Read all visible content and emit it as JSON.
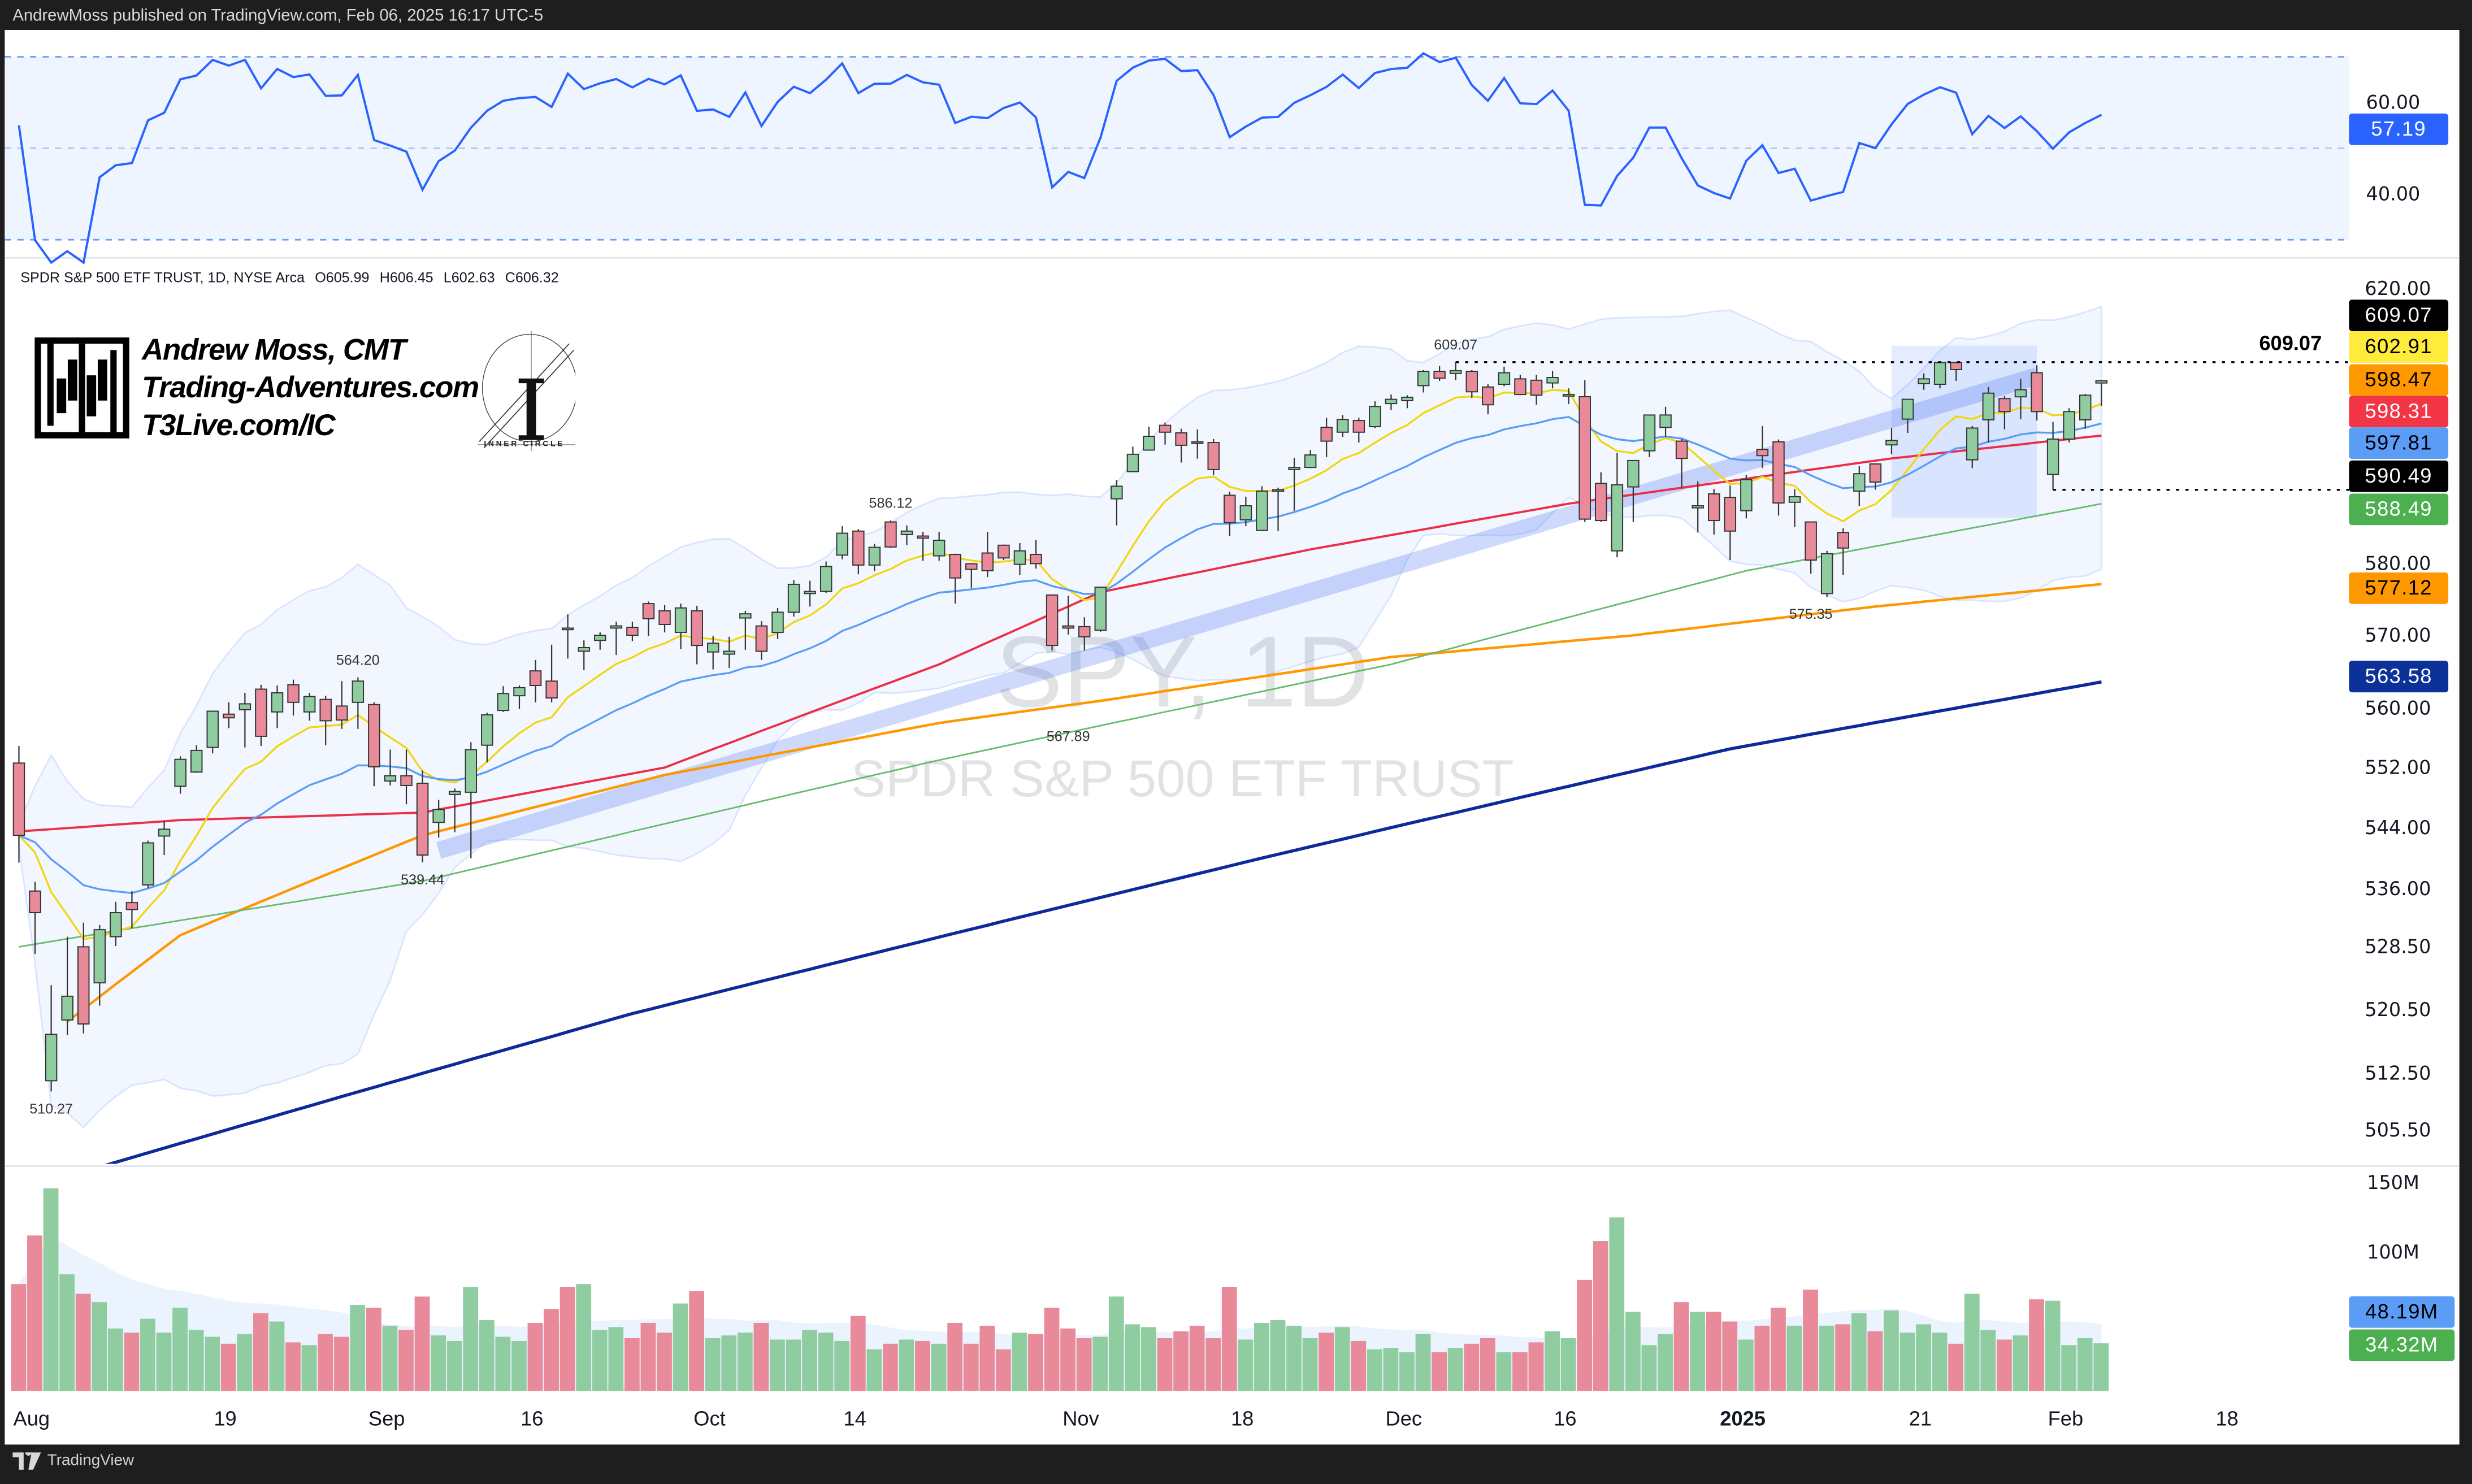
{
  "header": {
    "published": "AndrewMoss published on TradingView.com, Feb 06, 2025 16:17 UTC-5"
  },
  "legend": {
    "symbol": "SPDR S&P 500 ETF TRUST, 1D, NYSE Arca",
    "open": "O605.99",
    "high": "H606.45",
    "low": "L602.63",
    "close": "C606.32"
  },
  "watermark": {
    "ticker": "SPY, 1D",
    "name": "SPDR S&P 500 ETF TRUST"
  },
  "branding": {
    "line1": "Andrew Moss, CMT",
    "line2": "Trading-Adventures.com",
    "line3": "T3Live.com/IC",
    "inner_circle": "INNER CIRCLE"
  },
  "footer": {
    "logo_text": "TradingView"
  },
  "colors": {
    "up": "#8fcca0",
    "down": "#e88a99",
    "up_candle": "#8fcca0",
    "down_candle": "#e88a99",
    "ema8": "#f2d60f",
    "ema21": "#5b9cf6",
    "sma50": "#ec2f45",
    "ma_orange": "#ff9800",
    "ma_green": "#66bb6a",
    "ma_navy": "#0d2a9a",
    "rsi": "#2962ff"
  },
  "chart_data": {
    "type": "candlestick",
    "title": "SPY daily",
    "y_scale": "log",
    "price_ticks": [
      "620.00",
      "580.00",
      "570.00",
      "560.00",
      "552.00",
      "544.00",
      "536.00",
      "528.50",
      "520.50",
      "512.50",
      "505.50"
    ],
    "time_labels": [
      {
        "label": "Aug",
        "idx": 0
      },
      {
        "label": "19",
        "idx": 12
      },
      {
        "label": "Sep",
        "idx": 22
      },
      {
        "label": "16",
        "idx": 31
      },
      {
        "label": "Oct",
        "idx": 42
      },
      {
        "label": "14",
        "idx": 51
      },
      {
        "label": "Nov",
        "idx": 65
      },
      {
        "label": "18",
        "idx": 75
      },
      {
        "label": "Dec",
        "idx": 85
      },
      {
        "label": "16",
        "idx": 95
      },
      {
        "label": "2025",
        "idx": 106,
        "bold": true
      },
      {
        "label": "21",
        "idx": 117
      },
      {
        "label": "Feb",
        "idx": 126
      },
      {
        "label": "18",
        "idx": 136
      }
    ],
    "ohlcv_fields": [
      "open",
      "high",
      "low",
      "close",
      "volume_M"
    ],
    "ohlcv": [
      [
        552.6,
        554.9,
        539.4,
        543.0,
        77
      ],
      [
        535.7,
        536.9,
        527.6,
        532.9,
        112
      ],
      [
        511.6,
        523.6,
        510.27,
        517.4,
        146
      ],
      [
        519.2,
        529.8,
        517.3,
        522.2,
        84
      ],
      [
        528.5,
        531.6,
        517.5,
        518.7,
        70
      ],
      [
        523.9,
        531.3,
        521.0,
        530.7,
        64
      ],
      [
        529.8,
        534.3,
        528.6,
        532.9,
        45
      ],
      [
        534.2,
        535.7,
        530.9,
        533.3,
        42
      ],
      [
        536.5,
        542.3,
        536.1,
        542.0,
        52
      ],
      [
        542.9,
        544.9,
        540.4,
        543.8,
        42
      ],
      [
        549.5,
        553.5,
        548.5,
        553.1,
        60
      ],
      [
        551.4,
        555.0,
        551.3,
        554.3,
        44
      ],
      [
        554.7,
        559.6,
        553.9,
        559.6,
        39
      ],
      [
        559.2,
        560.8,
        557.3,
        558.7,
        34
      ],
      [
        559.8,
        562.1,
        554.7,
        560.6,
        41
      ],
      [
        562.6,
        563.2,
        554.9,
        556.2,
        56
      ],
      [
        559.5,
        563.1,
        557.3,
        562.1,
        50
      ],
      [
        563.2,
        563.9,
        559.0,
        560.8,
        35
      ],
      [
        559.5,
        562.1,
        558.3,
        561.6,
        33
      ],
      [
        561.2,
        561.7,
        555.0,
        558.3,
        41
      ],
      [
        560.3,
        563.7,
        557.2,
        558.4,
        39
      ],
      [
        560.8,
        564.2,
        557.2,
        563.7,
        62
      ],
      [
        560.5,
        560.8,
        549.5,
        552.1,
        60
      ],
      [
        550.2,
        554.4,
        549.6,
        550.9,
        47
      ],
      [
        550.9,
        554.4,
        547.1,
        549.6,
        44
      ],
      [
        549.9,
        551.6,
        539.44,
        540.4,
        68
      ],
      [
        544.7,
        547.7,
        542.7,
        546.4,
        40
      ],
      [
        548.4,
        549.2,
        543.4,
        548.8,
        36
      ],
      [
        548.7,
        555.4,
        539.96,
        554.4,
        75
      ],
      [
        555.0,
        559.4,
        552.7,
        559.1,
        51
      ],
      [
        559.7,
        563.0,
        559.5,
        562.0,
        39
      ],
      [
        561.7,
        563.1,
        559.9,
        562.8,
        36
      ],
      [
        565.1,
        566.6,
        560.8,
        563.1,
        49
      ],
      [
        563.7,
        568.7,
        560.8,
        561.4,
        59
      ],
      [
        571.0,
        572.9,
        566.8,
        570.98,
        75
      ],
      [
        567.8,
        569.3,
        565.2,
        568.3,
        77
      ],
      [
        569.3,
        570.4,
        568.0,
        570.0,
        44
      ],
      [
        571.0,
        571.9,
        567.3,
        571.3,
        46
      ],
      [
        571.1,
        571.9,
        569.2,
        570.0,
        38
      ],
      [
        574.4,
        574.7,
        569.9,
        572.3,
        49
      ],
      [
        573.4,
        574.2,
        570.4,
        571.5,
        42
      ],
      [
        570.4,
        574.4,
        568.1,
        573.8,
        63
      ],
      [
        573.4,
        574.1,
        566.0,
        568.6,
        72
      ],
      [
        567.7,
        569.9,
        565.3,
        568.9,
        38
      ],
      [
        567.4,
        569.8,
        565.5,
        567.8,
        40
      ],
      [
        572.4,
        573.4,
        568.0,
        572.98,
        42
      ],
      [
        571.3,
        571.96,
        566.6,
        567.8,
        49
      ],
      [
        570.4,
        573.8,
        569.5,
        573.2,
        37
      ],
      [
        573.2,
        577.7,
        572.6,
        577.1,
        37
      ],
      [
        575.8,
        577.6,
        573.99,
        576.1,
        44
      ],
      [
        576.1,
        580.3,
        575.9,
        579.6,
        42
      ],
      [
        581.2,
        585.3,
        580.6,
        584.3,
        36
      ],
      [
        584.6,
        584.9,
        578.5,
        579.8,
        54
      ],
      [
        579.8,
        582.8,
        578.95,
        582.3,
        30
      ],
      [
        585.9,
        586.12,
        582.2,
        582.35,
        34
      ],
      [
        584.1,
        585.4,
        582.6,
        584.6,
        37
      ],
      [
        583.9,
        584.5,
        580.4,
        583.6,
        36
      ],
      [
        581.1,
        584.5,
        580.4,
        583.3,
        34
      ],
      [
        581.3,
        581.4,
        574.4,
        577.99,
        49
      ],
      [
        579.98,
        580.1,
        576.6,
        579.2,
        34
      ],
      [
        581.5,
        584.5,
        578.1,
        579.0,
        47
      ],
      [
        582.6,
        582.7,
        580.5,
        580.8,
        30
      ],
      [
        579.9,
        582.9,
        578.4,
        581.8,
        42
      ],
      [
        581.3,
        583.3,
        579.3,
        580.0,
        41
      ],
      [
        575.6,
        575.6,
        567.89,
        568.6,
        60
      ],
      [
        571.3,
        575.5,
        570.1,
        571.0,
        45
      ],
      [
        571.2,
        572.5,
        567.9,
        569.8,
        38
      ],
      [
        570.7,
        576.7,
        570.5,
        576.7,
        39
      ],
      [
        589.2,
        591.9,
        585.4,
        591.0,
        68
      ],
      [
        593.1,
        596.7,
        593.0,
        595.6,
        48
      ],
      [
        596.2,
        599.6,
        596.2,
        598.2,
        46
      ],
      [
        599.8,
        600.2,
        597.0,
        598.8,
        38
      ],
      [
        598.7,
        599.3,
        594.4,
        596.9,
        43
      ],
      [
        597.4,
        599.2,
        594.96,
        597.2,
        47
      ],
      [
        597.3,
        597.8,
        592.6,
        593.4,
        38
      ],
      [
        589.7,
        590.2,
        583.9,
        585.8,
        75
      ],
      [
        586.2,
        589.5,
        585.3,
        588.2,
        37
      ],
      [
        584.7,
        591.0,
        584.6,
        590.3,
        49
      ],
      [
        590.4,
        590.8,
        584.6,
        590.5,
        51
      ],
      [
        593.4,
        595.1,
        587.5,
        593.7,
        47
      ],
      [
        593.7,
        596.2,
        593.6,
        595.5,
        38
      ],
      [
        599.5,
        600.9,
        595.2,
        597.5,
        42
      ],
      [
        598.8,
        601.3,
        598.1,
        600.65,
        46
      ],
      [
        600.5,
        600.9,
        597.3,
        598.8,
        36
      ],
      [
        599.6,
        603.3,
        599.4,
        602.55,
        30
      ],
      [
        602.97,
        604.3,
        602.0,
        603.6,
        31
      ],
      [
        603.4,
        604.2,
        602.3,
        603.9,
        28
      ],
      [
        605.6,
        607.9,
        604.6,
        607.7,
        41
      ],
      [
        607.7,
        608.5,
        606.3,
        606.7,
        28
      ],
      [
        607.4,
        609.07,
        606.4,
        607.8,
        31
      ],
      [
        607.7,
        607.9,
        603.8,
        604.7,
        34
      ],
      [
        605.4,
        605.8,
        601.4,
        602.8,
        38
      ],
      [
        605.8,
        608.4,
        605.5,
        607.5,
        28
      ],
      [
        606.6,
        607.2,
        604.2,
        604.3,
        28
      ],
      [
        606.4,
        607.2,
        602.8,
        604.2,
        35
      ],
      [
        606.0,
        607.8,
        605.2,
        606.8,
        43
      ],
      [
        604.3,
        605.2,
        602.9,
        604.3,
        38
      ],
      [
        603.98,
        606.4,
        585.9,
        586.3,
        80
      ],
      [
        591.4,
        593.0,
        585.9,
        586.1,
        108
      ],
      [
        581.8,
        595.8,
        580.9,
        591.2,
        125
      ],
      [
        590.9,
        594.5,
        585.9,
        594.7,
        57
      ],
      [
        596.1,
        601.3,
        595.2,
        601.3,
        33
      ],
      [
        599.5,
        602.5,
        598.1,
        601.3,
        41
      ],
      [
        597.5,
        597.8,
        590.8,
        595.0,
        64
      ],
      [
        587.9,
        591.7,
        584.4,
        588.2,
        57
      ],
      [
        589.9,
        590.6,
        584.1,
        586.1,
        57
      ],
      [
        589.4,
        591.1,
        580.5,
        584.6,
        50
      ],
      [
        587.5,
        592.6,
        586.4,
        591.95,
        37
      ],
      [
        596.3,
        599.7,
        593.6,
        595.4,
        47
      ],
      [
        597.4,
        597.75,
        586.8,
        588.6,
        60
      ],
      [
        588.7,
        590.6,
        585.2,
        589.5,
        47
      ],
      [
        585.9,
        585.95,
        578.6,
        580.5,
        73
      ],
      [
        575.8,
        581.8,
        575.35,
        581.4,
        47
      ],
      [
        584.4,
        585.0,
        578.4,
        582.2,
        48
      ],
      [
        590.3,
        593.9,
        588.2,
        592.8,
        56
      ],
      [
        594.2,
        594.3,
        590.5,
        591.6,
        43
      ],
      [
        596.96,
        599.4,
        595.6,
        597.6,
        58
      ],
      [
        600.7,
        603.1,
        598.7,
        603.6,
        42
      ],
      [
        605.9,
        607.4,
        605.0,
        606.6,
        48
      ],
      [
        605.8,
        609.07,
        605.2,
        609.0,
        42
      ],
      [
        609.0,
        609.07,
        606.3,
        607.97,
        34
      ],
      [
        594.8,
        599.7,
        593.6,
        599.4,
        70
      ],
      [
        600.6,
        605.4,
        597.3,
        604.5,
        44
      ],
      [
        603.7,
        604.1,
        599.2,
        601.8,
        37
      ],
      [
        603.96,
        606.6,
        600.7,
        605.0,
        40
      ],
      [
        607.5,
        608.6,
        600.5,
        601.8,
        66
      ],
      [
        592.7,
        600.3,
        590.49,
        597.8,
        65
      ],
      [
        597.8,
        602.3,
        597.3,
        601.8,
        33
      ],
      [
        600.6,
        604.4,
        599.3,
        604.2,
        38
      ],
      [
        605.99,
        606.45,
        602.63,
        606.32,
        34.32
      ]
    ],
    "moving_averages": {
      "sma50_red": [
        [
          0,
          543.5
        ],
        [
          10,
          545
        ],
        [
          25,
          546
        ],
        [
          40,
          552
        ],
        [
          57,
          566
        ],
        [
          67,
          576
        ],
        [
          80,
          582
        ],
        [
          96,
          588.5
        ],
        [
          116,
          595
        ],
        [
          129,
          598.31
        ]
      ],
      "orange": [
        [
          3,
          519
        ],
        [
          10,
          530
        ],
        [
          25,
          543
        ],
        [
          40,
          551
        ],
        [
          57,
          558
        ],
        [
          67,
          561
        ],
        [
          85,
          567
        ],
        [
          100,
          570
        ],
        [
          115,
          574
        ],
        [
          129,
          577.12
        ]
      ],
      "green": [
        [
          0,
          528.5
        ],
        [
          25,
          537
        ],
        [
          57,
          553
        ],
        [
          85,
          566
        ],
        [
          107,
          579
        ],
        [
          129,
          588.49
        ]
      ],
      "navy": [
        [
          5,
          501
        ],
        [
          38,
          520
        ],
        [
          77,
          540
        ],
        [
          106,
          554.5
        ],
        [
          129,
          563.58
        ]
      ]
    },
    "annotations": [
      {
        "text": "609.07",
        "idx": 89,
        "price": 609.07,
        "pos": "above"
      },
      {
        "text": "586.12",
        "idx": 54,
        "price": 586.12,
        "pos": "above"
      },
      {
        "text": "564.20",
        "idx": 21,
        "price": 564.2,
        "pos": "above"
      },
      {
        "text": "567.89",
        "idx": 65,
        "price": 567.89,
        "pos": "below"
      },
      {
        "text": "575.35",
        "idx": 111,
        "price": 575.35,
        "pos": "below"
      },
      {
        "text": "539.44",
        "idx": 25,
        "price": 539.44,
        "pos": "below"
      },
      {
        "text": "510.27",
        "idx": 2,
        "price": 510.27,
        "pos": "below"
      }
    ],
    "levels": [
      {
        "price": 609.07,
        "from_idx": 89,
        "label": "609.07"
      },
      {
        "price": 590.49,
        "from_idx": 126
      }
    ],
    "channel": {
      "from": [
        26,
        541
      ],
      "to": [
        125,
        607
      ]
    },
    "zone": {
      "from_idx": 116,
      "to_idx": 125,
      "top": 611.5,
      "bottom": 586.5
    },
    "rsi": {
      "levels": [
        70,
        50,
        30
      ],
      "ticks": [
        "60.00",
        "40.00"
      ],
      "last": "57.19"
    },
    "volume": {
      "ticks": [
        "150M",
        "100M"
      ],
      "ma_label": "48.19M",
      "last_label": "34.32M"
    },
    "price_tags": [
      {
        "value": "609.07",
        "bg": "#000000",
        "fg": "#ffffff"
      },
      {
        "value": "602.91",
        "bg": "#ffeb3b",
        "fg": "#000000"
      },
      {
        "value": "598.47",
        "bg": "#ff9800",
        "fg": "#000000"
      },
      {
        "value": "598.31",
        "bg": "#f23645",
        "fg": "#ffffff"
      },
      {
        "value": "597.81",
        "bg": "#5b9cf6",
        "fg": "#000000"
      },
      {
        "value": "590.49",
        "bg": "#000000",
        "fg": "#ffffff"
      },
      {
        "value": "588.49",
        "bg": "#4caf50",
        "fg": "#ffffff"
      },
      {
        "value": "577.12",
        "bg": "#ff9800",
        "fg": "#000000"
      },
      {
        "value": "563.58",
        "bg": "#0c3299",
        "fg": "#ffffff"
      }
    ]
  }
}
